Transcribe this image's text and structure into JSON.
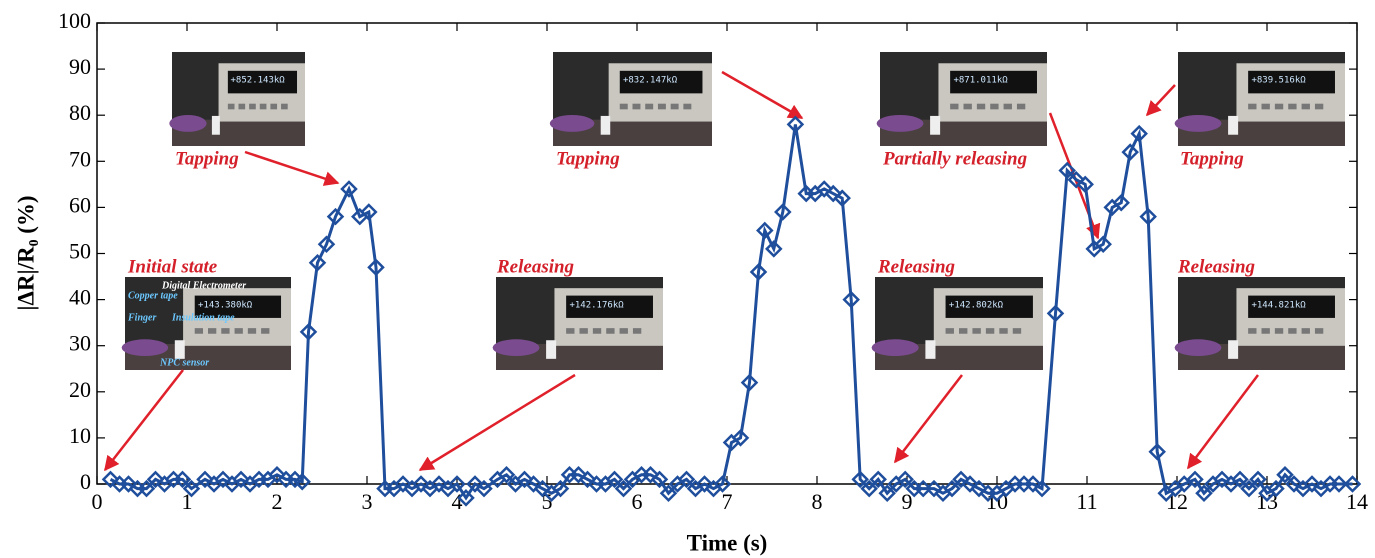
{
  "chart_data": {
    "type": "line",
    "marker": "diamond",
    "color": "#1f4e9c",
    "xlabel": "Time (s)",
    "ylabel": "|ΔR|/R₀ (%)",
    "xlim": [
      0,
      14
    ],
    "ylim": [
      0,
      100
    ],
    "xticks": [
      0,
      1,
      2,
      3,
      4,
      5,
      6,
      7,
      8,
      9,
      10,
      11,
      12,
      13,
      14
    ],
    "yticks": [
      0,
      10,
      20,
      30,
      40,
      50,
      60,
      70,
      80,
      90,
      100
    ],
    "x": [
      0.15,
      0.25,
      0.35,
      0.45,
      0.55,
      0.65,
      0.75,
      0.85,
      0.95,
      1.05,
      1.2,
      1.3,
      1.4,
      1.5,
      1.6,
      1.7,
      1.8,
      1.9,
      2.0,
      2.1,
      2.2,
      2.28,
      2.35,
      2.45,
      2.55,
      2.65,
      2.8,
      2.92,
      3.02,
      3.1,
      3.2,
      3.3,
      3.4,
      3.5,
      3.6,
      3.7,
      3.8,
      3.9,
      4.0,
      4.1,
      4.2,
      4.3,
      4.45,
      4.55,
      4.65,
      4.75,
      4.85,
      4.95,
      5.05,
      5.15,
      5.25,
      5.35,
      5.45,
      5.55,
      5.65,
      5.75,
      5.85,
      5.95,
      6.05,
      6.15,
      6.25,
      6.35,
      6.45,
      6.55,
      6.65,
      6.75,
      6.85,
      6.95,
      7.05,
      7.15,
      7.25,
      7.35,
      7.42,
      7.52,
      7.62,
      7.76,
      7.88,
      7.98,
      8.08,
      8.18,
      8.28,
      8.38,
      8.48,
      8.58,
      8.68,
      8.78,
      8.88,
      8.98,
      9.08,
      9.18,
      9.3,
      9.4,
      9.5,
      9.6,
      9.7,
      9.8,
      9.9,
      10.0,
      10.1,
      10.2,
      10.3,
      10.4,
      10.5,
      10.65,
      10.78,
      10.88,
      10.98,
      11.08,
      11.18,
      11.28,
      11.38,
      11.48,
      11.58,
      11.68,
      11.78,
      11.88,
      11.98,
      12.08,
      12.2,
      12.3,
      12.4,
      12.5,
      12.6,
      12.7,
      12.8,
      12.9,
      13.0,
      13.1,
      13.2,
      13.3,
      13.4,
      13.5,
      13.6,
      13.7,
      13.8,
      13.95
    ],
    "values": [
      1,
      0,
      0,
      -1,
      -1,
      1,
      0,
      1,
      1,
      -1,
      1,
      0,
      1,
      0,
      1,
      0,
      1,
      1,
      2,
      1,
      1,
      0.5,
      33,
      48,
      52,
      58,
      64,
      58,
      59,
      47,
      -1,
      -1,
      0,
      -1,
      0,
      -1,
      0,
      -1,
      0,
      -3,
      0,
      -1,
      1,
      2,
      0,
      1,
      0,
      -1,
      -2,
      -1,
      2,
      2,
      1,
      0,
      0,
      1,
      -1,
      1,
      2,
      2,
      1,
      -2,
      0,
      1,
      -1,
      0,
      -1,
      0,
      9,
      10,
      22,
      46,
      55,
      51,
      59,
      78,
      63,
      63,
      64,
      63,
      62,
      40,
      1,
      -1,
      1,
      -2,
      0,
      1,
      -1,
      -1,
      -1,
      -2,
      -1,
      1,
      0,
      -1,
      -2,
      -2,
      -1,
      0,
      0,
      0,
      -1,
      37,
      68,
      66,
      65,
      51,
      52,
      60,
      61,
      72,
      76,
      58,
      7,
      -2,
      -1,
      0,
      1,
      -2,
      0,
      1,
      0,
      1,
      -1,
      1,
      -2,
      -1,
      2,
      0,
      -1,
      0,
      -1,
      0,
      0,
      0
    ],
    "annotations": [
      {
        "text": "Initial state",
        "readout": "+143.380kΩ",
        "callouts": [
          "Digital Electrometer",
          "Copper tape",
          "Finger",
          "Insulation tape",
          "NPC sensor"
        ]
      },
      {
        "text": "Tapping",
        "readout": "+852.143kΩ"
      },
      {
        "text": "Releasing",
        "readout": "+142.176kΩ"
      },
      {
        "text": "Tapping",
        "readout": "+832.147kΩ"
      },
      {
        "text": "Releasing",
        "readout": "+142.802kΩ"
      },
      {
        "text": "Partially releasing",
        "readout": "+871.011kΩ"
      },
      {
        "text": "Tapping",
        "readout": "+839.516kΩ"
      },
      {
        "text": "Releasing",
        "readout": "+144.821kΩ"
      }
    ]
  }
}
